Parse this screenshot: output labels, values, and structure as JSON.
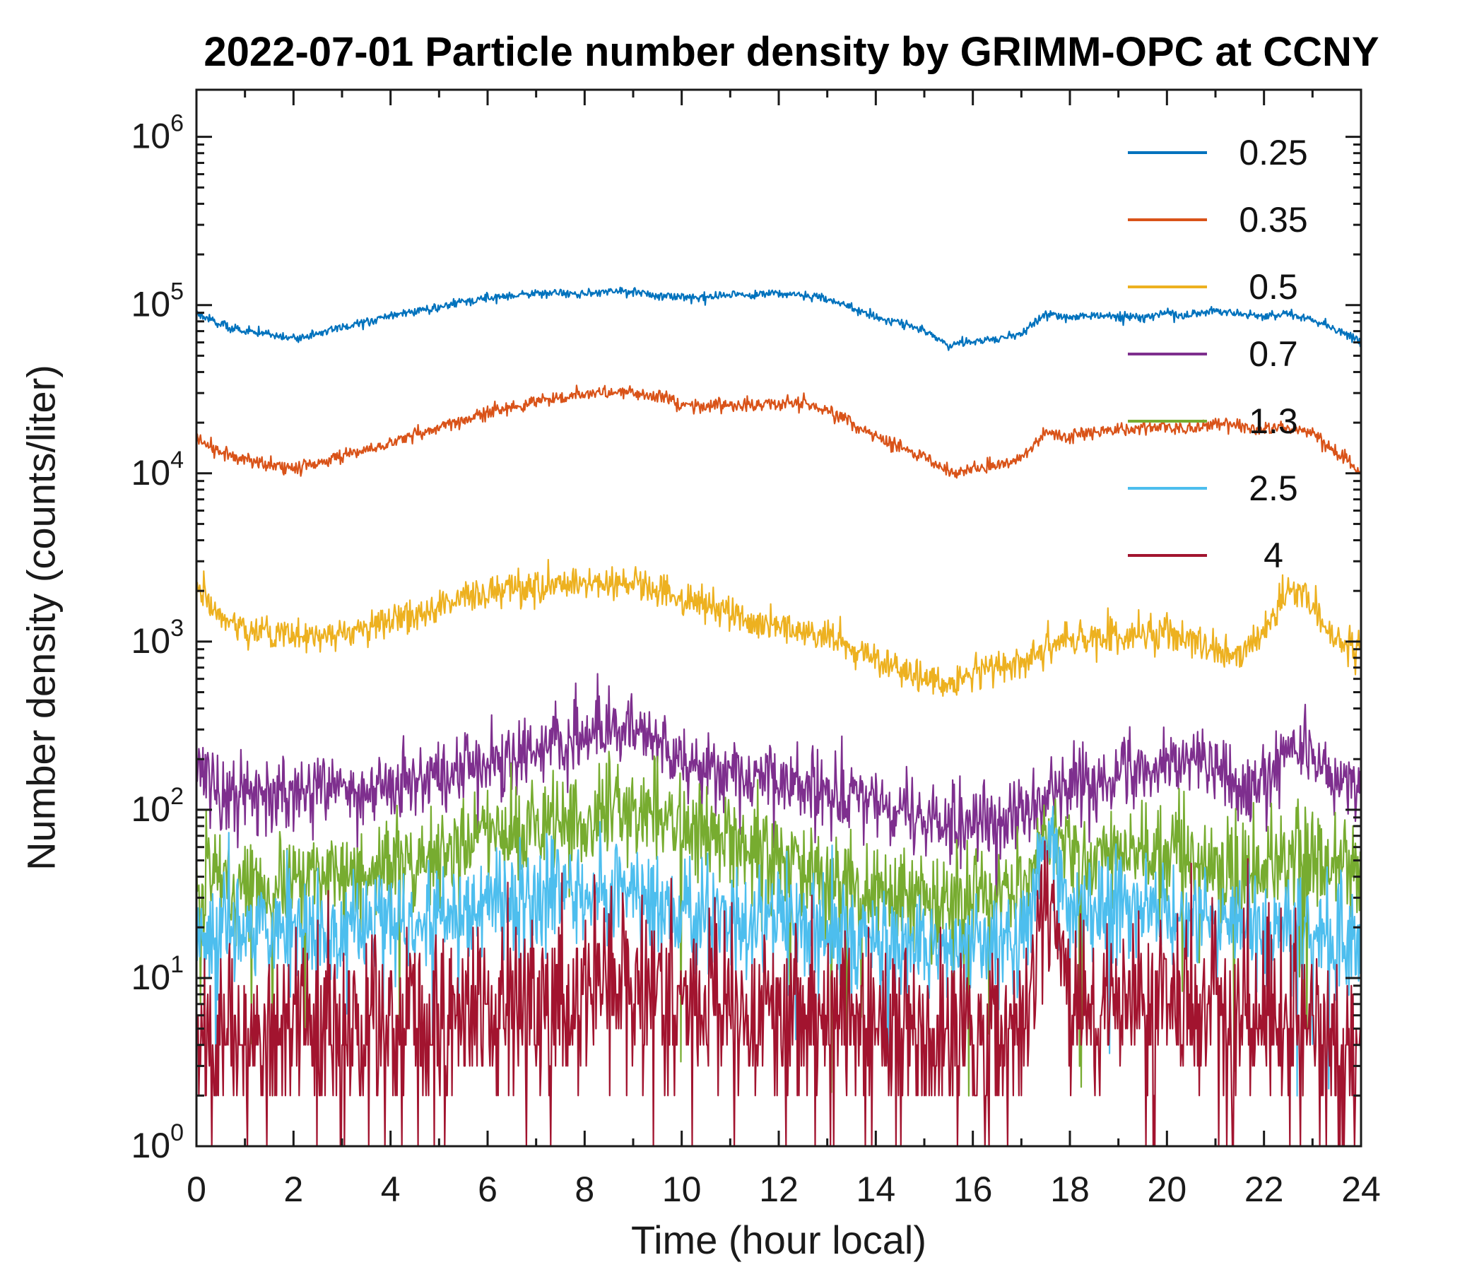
{
  "chart_data": {
    "type": "line",
    "title": "2022-07-01 Particle number density by GRIMM-OPC at CCNY",
    "xlabel": "Time (hour local)",
    "ylabel": "Number density (counts/liter)",
    "x_range": [
      0,
      24
    ],
    "x_ticks": [
      0,
      2,
      4,
      6,
      8,
      10,
      12,
      14,
      16,
      18,
      20,
      22,
      24
    ],
    "x_minor_step": 1,
    "y_scale": "log",
    "y_tick_exponents": [
      0,
      1,
      2,
      3,
      4,
      5,
      6
    ],
    "ylim_log": [
      0,
      6.28
    ],
    "grid": false,
    "legend_position": "upper-right-inside",
    "axis_color": "#1a1a1a",
    "sample_minutes": 1,
    "anchor_dt_hours": 0.5,
    "series": [
      {
        "name": "0.25",
        "color": "#0072BD",
        "noise_sigma": 0.013,
        "quantize": false,
        "floor_log10": null,
        "spike_prob": 0,
        "spike_depth": [
          0,
          0
        ],
        "anchors_log10": [
          4.95,
          4.88,
          4.85,
          4.82,
          4.8,
          4.83,
          4.87,
          4.9,
          4.93,
          4.96,
          4.99,
          5.02,
          5.04,
          5.05,
          5.07,
          5.07,
          5.07,
          5.08,
          5.08,
          5.06,
          5.05,
          5.05,
          5.06,
          5.06,
          5.07,
          5.06,
          5.04,
          4.98,
          4.93,
          4.9,
          4.85,
          4.76,
          4.78,
          4.8,
          4.83,
          4.95,
          4.92,
          4.94,
          4.93,
          4.93,
          4.95,
          4.94,
          4.96,
          4.95,
          4.93,
          4.95,
          4.92,
          4.85,
          4.79
        ]
      },
      {
        "name": "0.35",
        "color": "#D95319",
        "noise_sigma": 0.02,
        "quantize": false,
        "floor_log10": null,
        "spike_prob": 0,
        "spike_depth": [
          0,
          0
        ],
        "anchors_log10": [
          4.2,
          4.12,
          4.08,
          4.05,
          4.03,
          4.06,
          4.1,
          4.14,
          4.18,
          4.23,
          4.27,
          4.32,
          4.36,
          4.4,
          4.43,
          4.45,
          4.47,
          4.48,
          4.48,
          4.46,
          4.41,
          4.4,
          4.4,
          4.41,
          4.42,
          4.41,
          4.37,
          4.3,
          4.22,
          4.15,
          4.1,
          4.0,
          4.02,
          4.04,
          4.08,
          4.24,
          4.22,
          4.25,
          4.26,
          4.27,
          4.28,
          4.27,
          4.3,
          4.28,
          4.26,
          4.28,
          4.24,
          4.12,
          4.01
        ]
      },
      {
        "name": "0.5",
        "color": "#EDB120",
        "noise_sigma": 0.05,
        "quantize": false,
        "floor_log10": null,
        "spike_prob": 0,
        "spike_depth": [
          0,
          0
        ],
        "anchors_log10": [
          3.3,
          3.15,
          3.08,
          3.05,
          3.04,
          3.03,
          3.05,
          3.08,
          3.12,
          3.16,
          3.2,
          3.26,
          3.3,
          3.33,
          3.34,
          3.33,
          3.33,
          3.35,
          3.36,
          3.32,
          3.25,
          3.21,
          3.17,
          3.13,
          3.1,
          3.06,
          3.02,
          2.95,
          2.88,
          2.83,
          2.78,
          2.74,
          2.83,
          2.85,
          2.88,
          2.98,
          3.0,
          3.02,
          3.03,
          3.04,
          3.05,
          3.02,
          2.95,
          2.92,
          3.05,
          3.33,
          3.2,
          3.0,
          2.96
        ]
      },
      {
        "name": "0.7",
        "color": "#7E2F8E",
        "noise_sigma": 0.11,
        "quantize": false,
        "floor_log10": null,
        "spike_prob": 0.006,
        "spike_depth": [
          0.3,
          0.6
        ],
        "anchors_log10": [
          2.25,
          2.12,
          2.1,
          2.08,
          2.1,
          2.12,
          2.13,
          2.12,
          2.14,
          2.18,
          2.2,
          2.24,
          2.28,
          2.33,
          2.38,
          2.4,
          2.42,
          2.48,
          2.5,
          2.44,
          2.3,
          2.26,
          2.22,
          2.2,
          2.18,
          2.14,
          2.1,
          2.05,
          2.02,
          1.98,
          1.95,
          1.9,
          1.92,
          1.93,
          1.95,
          2.1,
          2.15,
          2.18,
          2.2,
          2.26,
          2.28,
          2.3,
          2.24,
          2.1,
          2.15,
          2.42,
          2.3,
          2.18,
          2.16
        ]
      },
      {
        "name": "1.3",
        "color": "#77AC30",
        "noise_sigma": 0.15,
        "quantize": false,
        "floor_log10": 0.3,
        "spike_prob": 0.015,
        "spike_depth": [
          0.5,
          1.4
        ],
        "anchors_log10": [
          1.6,
          1.58,
          1.6,
          1.58,
          1.6,
          1.62,
          1.6,
          1.62,
          1.65,
          1.68,
          1.72,
          1.8,
          1.85,
          1.88,
          1.9,
          1.92,
          1.95,
          2.0,
          2.05,
          1.98,
          1.88,
          1.84,
          1.8,
          1.75,
          1.72,
          1.68,
          1.62,
          1.58,
          1.52,
          1.48,
          1.47,
          1.46,
          1.48,
          1.5,
          1.52,
          1.9,
          1.7,
          1.7,
          1.72,
          1.74,
          1.75,
          1.72,
          1.7,
          1.62,
          1.65,
          1.75,
          1.7,
          1.65,
          1.6
        ]
      },
      {
        "name": "2.5",
        "color": "#4DBEEE",
        "noise_sigma": 0.16,
        "quantize": false,
        "floor_log10": 0.3,
        "spike_prob": 0.015,
        "spike_depth": [
          0.4,
          1.0
        ],
        "anchors_log10": [
          1.3,
          1.28,
          1.3,
          1.28,
          1.3,
          1.32,
          1.3,
          1.32,
          1.33,
          1.35,
          1.36,
          1.4,
          1.42,
          1.44,
          1.46,
          1.48,
          1.48,
          1.5,
          1.52,
          1.45,
          1.4,
          1.38,
          1.36,
          1.33,
          1.32,
          1.3,
          1.28,
          1.24,
          1.2,
          1.18,
          1.16,
          1.15,
          1.17,
          1.18,
          1.2,
          1.85,
          1.45,
          1.4,
          1.42,
          1.4,
          1.38,
          1.35,
          1.32,
          1.28,
          1.3,
          1.35,
          1.3,
          1.22,
          1.18
        ]
      },
      {
        "name": "4",
        "color": "#A2142F",
        "noise_sigma": 0.28,
        "quantize": true,
        "floor_log10": 0,
        "spike_prob": 0.03,
        "spike_depth": [
          0.4,
          1.0
        ],
        "anchors_log10": [
          0.7,
          0.65,
          0.68,
          0.65,
          0.68,
          0.7,
          0.68,
          0.7,
          0.72,
          0.74,
          0.76,
          0.8,
          0.82,
          0.85,
          0.88,
          0.9,
          0.92,
          0.95,
          0.98,
          0.92,
          0.88,
          0.85,
          0.82,
          0.8,
          0.78,
          0.75,
          0.72,
          0.7,
          0.68,
          0.66,
          0.65,
          0.64,
          0.66,
          0.68,
          0.7,
          1.55,
          0.9,
          0.8,
          0.82,
          0.85,
          0.88,
          0.85,
          0.82,
          0.78,
          0.75,
          0.72,
          0.7,
          0.6,
          0.5
        ]
      }
    ]
  }
}
